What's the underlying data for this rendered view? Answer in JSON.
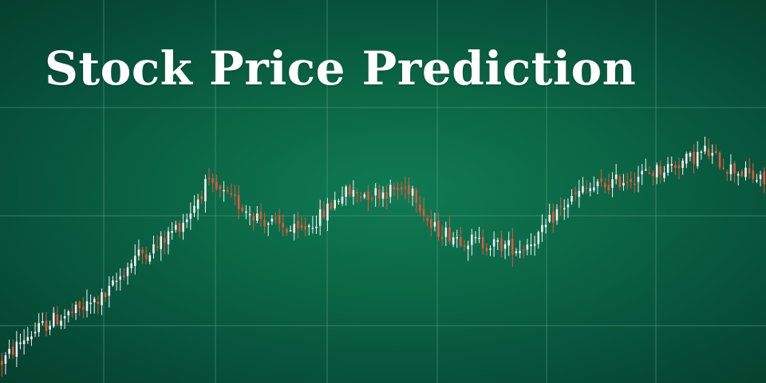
{
  "title": "Stock Price Prediction",
  "colors": {
    "background": "#0b6646",
    "grid": "#5f9f86",
    "up": "#f2f2f2",
    "down": "#e2573a"
  },
  "chart_data": {
    "type": "candlestick",
    "title": "Stock Price Prediction",
    "xlabel": "",
    "ylabel": "",
    "grid": true,
    "legend": "none",
    "ylim": [
      0,
      100
    ],
    "anchors": [
      [
        0,
        8
      ],
      [
        6,
        17
      ],
      [
        14,
        24
      ],
      [
        20,
        27
      ],
      [
        28,
        33
      ],
      [
        36,
        48
      ],
      [
        42,
        52
      ],
      [
        50,
        63
      ],
      [
        55,
        75
      ],
      [
        58,
        73
      ],
      [
        66,
        66
      ],
      [
        72,
        61
      ],
      [
        80,
        57
      ],
      [
        86,
        63
      ],
      [
        92,
        72
      ],
      [
        100,
        72
      ],
      [
        105,
        73
      ],
      [
        111,
        74
      ],
      [
        116,
        59
      ],
      [
        124,
        55
      ],
      [
        130,
        53
      ],
      [
        136,
        52
      ],
      [
        140,
        51
      ],
      [
        146,
        57
      ],
      [
        150,
        65
      ],
      [
        157,
        73
      ],
      [
        163,
        75
      ],
      [
        170,
        78
      ],
      [
        178,
        81
      ],
      [
        186,
        85
      ],
      [
        190,
        88
      ],
      [
        196,
        82
      ],
      [
        200,
        80
      ],
      [
        206,
        76
      ]
    ],
    "candle_count": 207
  }
}
